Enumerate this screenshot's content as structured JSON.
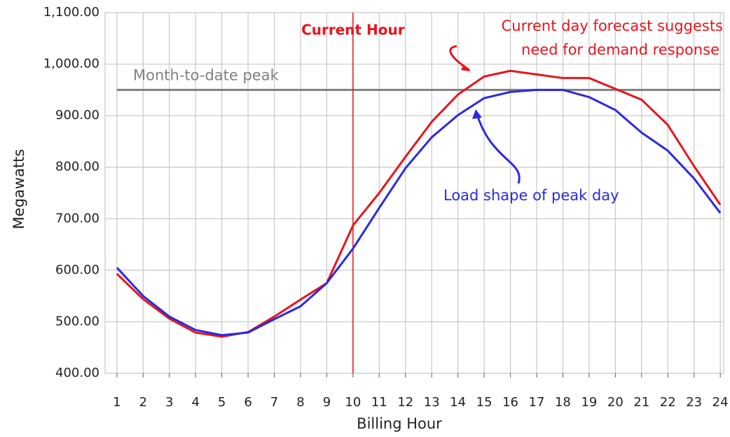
{
  "chart_data": {
    "type": "line",
    "x_label": "Billing Hour",
    "y_label": "Megawatts",
    "x": [
      1,
      2,
      3,
      4,
      5,
      6,
      7,
      8,
      9,
      10,
      11,
      12,
      13,
      14,
      15,
      16,
      17,
      18,
      19,
      20,
      21,
      22,
      23,
      24
    ],
    "series": [
      {
        "color": "#e8141c",
        "values": [
          593,
          544,
          506,
          479,
          471,
          480,
          510,
          543,
          575,
          687,
          750,
          820,
          888,
          941,
          976,
          987,
          980,
          973,
          973,
          952,
          931,
          882,
          802,
          727
        ]
      },
      {
        "color": "#2a2ae0",
        "values": [
          605,
          550,
          510,
          484,
          474,
          479,
          505,
          530,
          575,
          642,
          721,
          798,
          858,
          901,
          934,
          946,
          950,
          950,
          936,
          911,
          867,
          832,
          778,
          711
        ]
      }
    ],
    "xlim": [
      0.55,
      24.13
    ],
    "xticks": [
      1,
      2,
      3,
      4,
      5,
      6,
      7,
      8,
      9,
      10,
      11,
      12,
      13,
      14,
      15,
      16,
      17,
      18,
      19,
      20,
      21,
      22,
      23,
      24
    ],
    "ylim": [
      400,
      1100
    ],
    "yticks": [
      {
        "value": 400,
        "label": "400.00"
      },
      {
        "value": 500,
        "label": "500.00"
      },
      {
        "value": 600,
        "label": "600.00"
      },
      {
        "value": 700,
        "label": "700.00"
      },
      {
        "value": 800,
        "label": "800.00"
      },
      {
        "value": 900,
        "label": "900.00"
      },
      {
        "value": 1000,
        "label": "1,000.00"
      },
      {
        "value": 1100,
        "label": "1,100.00"
      }
    ],
    "grid": true,
    "hline": {
      "label": "Month-to-date peak",
      "value": 950,
      "color": "#808080"
    },
    "vline": {
      "label": "Current Hour",
      "x": 10,
      "color": "#e8141c"
    },
    "annotations": [
      {
        "lines": [
          "Current day forecast suggests",
          "need for demand response"
        ],
        "color": "#e8141c"
      },
      {
        "lines": [
          "Load shape of peak day"
        ],
        "color": "#2a2ae0"
      }
    ]
  }
}
